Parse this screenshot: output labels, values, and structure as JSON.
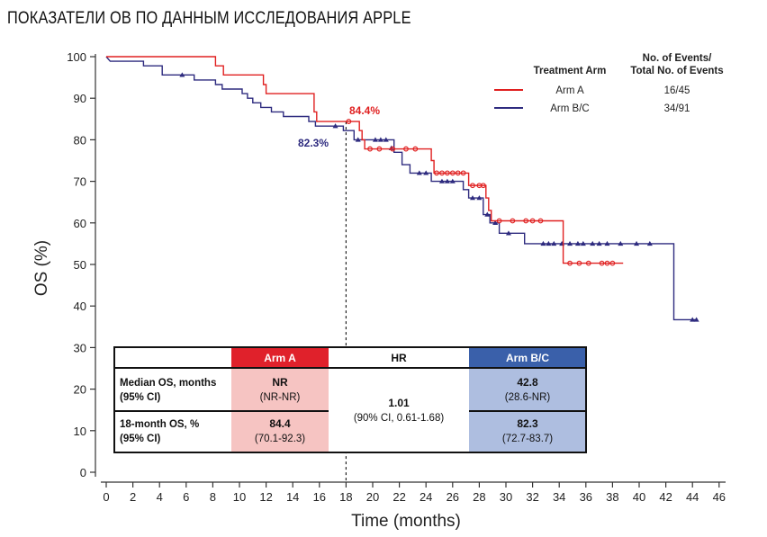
{
  "page_title": "ПОКАЗАТЕЛИ ОВ ПО ДАННЫМ ИССЛЕДОВАНИЯ APPLE",
  "chart_data": {
    "type": "line",
    "subtype": "kaplan-meier",
    "xlabel": "Time (months)",
    "ylabel": "OS (%)",
    "xlim": [
      0,
      46
    ],
    "ylim": [
      0,
      100
    ],
    "xticks": [
      0,
      2,
      4,
      6,
      8,
      10,
      12,
      14,
      16,
      18,
      20,
      22,
      24,
      26,
      28,
      30,
      32,
      34,
      36,
      38,
      40,
      42,
      44,
      46
    ],
    "yticks": [
      0,
      10,
      20,
      30,
      40,
      50,
      60,
      70,
      80,
      90,
      100
    ],
    "reference_line_x": 18,
    "legend": {
      "header_arm": "Treatment Arm",
      "header_events_line1": "No. of Events/",
      "header_events_line2": "Total No. of Events"
    },
    "series": [
      {
        "name": "Arm A",
        "events": "16/45",
        "color": "#e02020",
        "marker": "circle",
        "steps": [
          [
            0,
            100
          ],
          [
            8.2,
            100
          ],
          [
            8.2,
            97.8
          ],
          [
            8.8,
            97.8
          ],
          [
            8.8,
            95.6
          ],
          [
            11.8,
            95.6
          ],
          [
            11.8,
            93.3
          ],
          [
            12,
            93.3
          ],
          [
            12,
            91.1
          ],
          [
            15.6,
            91.1
          ],
          [
            15.6,
            88.9
          ],
          [
            15.6,
            86.7
          ],
          [
            15.8,
            86.7
          ],
          [
            15.8,
            84.4
          ],
          [
            19,
            84.4
          ],
          [
            19,
            82.2
          ],
          [
            19.2,
            82.2
          ],
          [
            19.2,
            80
          ],
          [
            19.4,
            80
          ],
          [
            19.4,
            77.8
          ],
          [
            24.4,
            77.8
          ],
          [
            24.4,
            75
          ],
          [
            24.6,
            75
          ],
          [
            24.6,
            72
          ],
          [
            27.2,
            72
          ],
          [
            27.2,
            69
          ],
          [
            28.5,
            69
          ],
          [
            28.5,
            66
          ],
          [
            28.7,
            66
          ],
          [
            28.7,
            63
          ],
          [
            28.9,
            63
          ],
          [
            28.9,
            60.5
          ],
          [
            34.3,
            60.5
          ],
          [
            34.3,
            50.3
          ],
          [
            38.8,
            50.3
          ]
        ],
        "censors": [
          [
            18.2,
            84.4
          ],
          [
            19.8,
            77.8
          ],
          [
            20.5,
            77.8
          ],
          [
            21.5,
            77.8
          ],
          [
            22.5,
            77.8
          ],
          [
            23.2,
            77.8
          ],
          [
            24.8,
            72
          ],
          [
            25.2,
            72
          ],
          [
            25.6,
            72
          ],
          [
            26,
            72
          ],
          [
            26.4,
            72
          ],
          [
            26.8,
            72
          ],
          [
            27.5,
            69
          ],
          [
            28,
            69
          ],
          [
            28.3,
            69
          ],
          [
            29.5,
            60.5
          ],
          [
            30.5,
            60.5
          ],
          [
            31.5,
            60.5
          ],
          [
            32,
            60.5
          ],
          [
            32.6,
            60.5
          ],
          [
            34.8,
            50.3
          ],
          [
            35.5,
            50.3
          ],
          [
            36.2,
            50.3
          ],
          [
            37.2,
            50.3
          ],
          [
            37.6,
            50.3
          ],
          [
            38,
            50.3
          ]
        ],
        "label_18m": "84.4%"
      },
      {
        "name": "Arm B/C",
        "events": "34/91",
        "color": "#2e2b7f",
        "marker": "triangle",
        "steps": [
          [
            0,
            100
          ],
          [
            0.3,
            98.9
          ],
          [
            2.8,
            98.9
          ],
          [
            2.8,
            97.8
          ],
          [
            4.2,
            97.8
          ],
          [
            4.2,
            95.6
          ],
          [
            6.6,
            95.6
          ],
          [
            6.6,
            94.4
          ],
          [
            8.2,
            94.4
          ],
          [
            8.2,
            93.3
          ],
          [
            8.7,
            93.3
          ],
          [
            8.7,
            92.2
          ],
          [
            10.2,
            92.2
          ],
          [
            10.2,
            91.1
          ],
          [
            10.6,
            91.1
          ],
          [
            10.6,
            90
          ],
          [
            11,
            90
          ],
          [
            11,
            88.9
          ],
          [
            11.6,
            88.9
          ],
          [
            11.6,
            87.8
          ],
          [
            12.4,
            87.8
          ],
          [
            12.4,
            86.7
          ],
          [
            13.3,
            86.7
          ],
          [
            13.3,
            85.6
          ],
          [
            15.2,
            85.6
          ],
          [
            15.2,
            84.4
          ],
          [
            15.7,
            84.4
          ],
          [
            15.7,
            83.3
          ],
          [
            17.8,
            83.3
          ],
          [
            17.8,
            82.2
          ],
          [
            18.6,
            82.2
          ],
          [
            18.6,
            80
          ],
          [
            21.6,
            80
          ],
          [
            21.6,
            77
          ],
          [
            22.2,
            77
          ],
          [
            22.2,
            74
          ],
          [
            22.8,
            74
          ],
          [
            22.8,
            72
          ],
          [
            24.4,
            72
          ],
          [
            24.4,
            70
          ],
          [
            26.8,
            70
          ],
          [
            26.8,
            68
          ],
          [
            27.2,
            68
          ],
          [
            27.2,
            66
          ],
          [
            28.3,
            66
          ],
          [
            28.3,
            62
          ],
          [
            28.8,
            62
          ],
          [
            28.8,
            60
          ],
          [
            29.5,
            60
          ],
          [
            29.5,
            57.5
          ],
          [
            31.4,
            57.5
          ],
          [
            31.4,
            55
          ],
          [
            42.6,
            55
          ],
          [
            42.6,
            36.7
          ],
          [
            44.3,
            36.7
          ]
        ],
        "censors": [
          [
            5.7,
            95.6
          ],
          [
            17.2,
            83.3
          ],
          [
            18.9,
            80
          ],
          [
            20.2,
            80
          ],
          [
            20.6,
            80
          ],
          [
            21,
            80
          ],
          [
            21.4,
            78
          ],
          [
            23.5,
            72
          ],
          [
            24,
            72
          ],
          [
            25.2,
            70
          ],
          [
            25.6,
            70
          ],
          [
            26,
            70
          ],
          [
            27.5,
            66
          ],
          [
            28,
            66
          ],
          [
            28.6,
            62
          ],
          [
            29.2,
            60
          ],
          [
            30.2,
            57.5
          ],
          [
            32.8,
            55
          ],
          [
            33.2,
            55
          ],
          [
            33.6,
            55
          ],
          [
            34.2,
            55
          ],
          [
            34.8,
            55
          ],
          [
            35.4,
            55
          ],
          [
            35.8,
            55
          ],
          [
            36.5,
            55
          ],
          [
            37,
            55
          ],
          [
            37.6,
            55
          ],
          [
            38.6,
            55
          ],
          [
            39.8,
            55
          ],
          [
            40.8,
            55
          ],
          [
            44,
            36.7
          ],
          [
            44.3,
            36.7
          ]
        ],
        "label_18m": "82.3%"
      }
    ],
    "table": {
      "col_arm_a": "Arm A",
      "col_hr": "HR",
      "col_arm_bc": "Arm B/C",
      "row1_label_line1": "Median OS, months",
      "row1_label_line2": "(95% CI)",
      "row1_arm_a_value": "NR",
      "row1_arm_a_ci": "(NR-NR)",
      "row1_arm_bc_value": "42.8",
      "row1_arm_bc_ci": "(28.6-NR)",
      "row2_label_line1": "18-month OS, %",
      "row2_label_line2": "(95% CI)",
      "row2_arm_a_value": "84.4",
      "row2_arm_a_ci": "(70.1-92.3)",
      "row2_arm_bc_value": "82.3",
      "row2_arm_bc_ci": "(72.7-83.7)",
      "hr_value": "1.01",
      "hr_ci": "(90% CI, 0.61-1.68)"
    },
    "colors": {
      "arm_a_header": "#e0212b",
      "arm_a_cell": "#f6c4c2",
      "arm_bc_header": "#3a60aa",
      "arm_bc_cell": "#aebee0"
    }
  }
}
